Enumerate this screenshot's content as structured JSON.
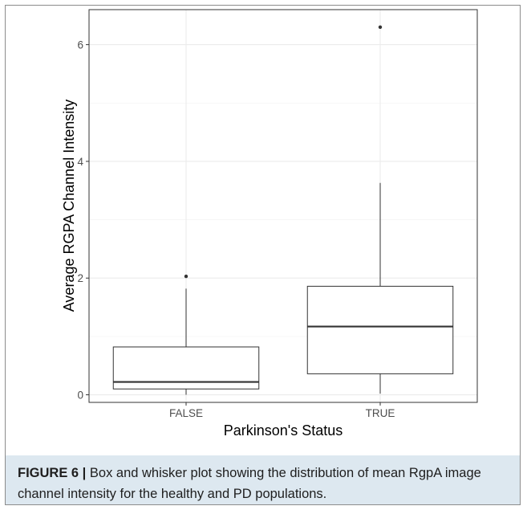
{
  "chart_data": {
    "type": "box",
    "xlabel": "Parkinson's Status",
    "ylabel": "Average RGPA Channel Intensity",
    "categories": [
      "FALSE",
      "TRUE"
    ],
    "ylim": [
      -0.13,
      6.6
    ],
    "y_ticks": [
      0,
      2,
      4,
      6
    ],
    "grid": true,
    "boxes": [
      {
        "category": "FALSE",
        "whisker_low": 0.0,
        "q1": 0.1,
        "median": 0.22,
        "q3": 0.82,
        "whisker_high": 1.82,
        "outliers": [
          2.03
        ]
      },
      {
        "category": "TRUE",
        "whisker_low": 0.02,
        "q1": 0.36,
        "median": 1.17,
        "q3": 1.86,
        "whisker_high": 3.63,
        "outliers": [
          6.3
        ]
      }
    ]
  },
  "caption": {
    "label": "FIGURE 6 |",
    "text": " Box and whisker plot showing the distribution of mean RgpA image channel intensity for the healthy and PD populations."
  }
}
